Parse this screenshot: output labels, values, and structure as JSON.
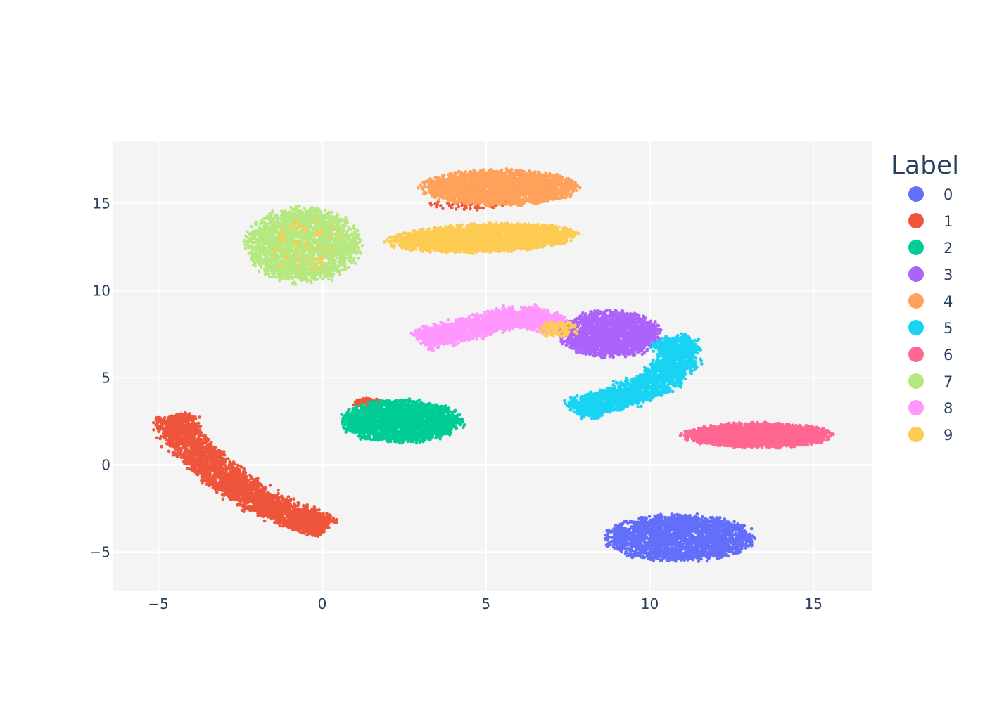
{
  "chart_data": {
    "type": "scatter",
    "xlim": [
      -6.4,
      16.8
    ],
    "ylim": [
      -7.2,
      18.6
    ],
    "x_ticks": [
      -5,
      0,
      5,
      10,
      15
    ],
    "y_ticks": [
      -5,
      0,
      5,
      10,
      15
    ],
    "x_tick_labels": [
      "−5",
      "0",
      "5",
      "10",
      "15"
    ],
    "y_tick_labels": [
      "−5",
      "0",
      "5",
      "10",
      "15"
    ],
    "grid": true,
    "plot_background": "#f4f4f4",
    "grid_color": "#ffffff",
    "legend": {
      "title": "Label",
      "placement": "right"
    },
    "series": [
      {
        "name": "0",
        "color": "#636efa",
        "clusters": [
          {
            "cx": 10.9,
            "cy": -4.2,
            "rx": 2.2,
            "ry": 1.3,
            "n": 2400
          }
        ]
      },
      {
        "name": "1",
        "color": "#ef553b",
        "clusters": [
          {
            "path": [
              [
                -4.6,
                2.8
              ],
              [
                -4.1,
                1.2
              ],
              [
                -3.0,
                -0.7
              ],
              [
                -2.0,
                -2.0
              ],
              [
                -0.8,
                -3.0
              ],
              [
                0.1,
                -3.6
              ]
            ],
            "width": 1.0,
            "n": 3200
          },
          {
            "cx": 1.4,
            "cy": 3.5,
            "rx": 0.5,
            "ry": 0.3,
            "n": 120
          },
          {
            "cx": 4.5,
            "cy": 15.0,
            "rx": 1.2,
            "ry": 0.4,
            "n": 80
          }
        ]
      },
      {
        "name": "2",
        "color": "#00cc96",
        "clusters": [
          {
            "cx": 2.4,
            "cy": 2.5,
            "rx": 1.8,
            "ry": 1.2,
            "n": 2200
          }
        ]
      },
      {
        "name": "3",
        "color": "#ab63fa",
        "clusters": [
          {
            "cx": 8.8,
            "cy": 7.5,
            "rx": 1.5,
            "ry": 1.3,
            "n": 1900
          }
        ]
      },
      {
        "name": "4",
        "color": "#ffa15a",
        "clusters": [
          {
            "cx": 5.4,
            "cy": 15.9,
            "rx": 2.3,
            "ry": 1.0,
            "n": 2500
          }
        ]
      },
      {
        "name": "5",
        "color": "#19d3f3",
        "clusters": [
          {
            "path": [
              [
                7.7,
                3.2
              ],
              [
                9.0,
                3.8
              ],
              [
                10.3,
                4.8
              ],
              [
                11.0,
                6.3
              ],
              [
                10.6,
                7.2
              ]
            ],
            "width": 1.0,
            "n": 2300
          }
        ]
      },
      {
        "name": "6",
        "color": "#ff6692",
        "clusters": [
          {
            "cx": 13.3,
            "cy": 1.7,
            "rx": 2.2,
            "ry": 0.7,
            "n": 2300
          }
        ]
      },
      {
        "name": "7",
        "color": "#b6e880",
        "clusters": [
          {
            "cx": -0.6,
            "cy": 12.6,
            "rx": 1.7,
            "ry": 2.1,
            "n": 2300
          }
        ]
      },
      {
        "name": "8",
        "color": "#ff97ff",
        "clusters": [
          {
            "path": [
              [
                3.0,
                7.2
              ],
              [
                4.5,
                7.8
              ],
              [
                6.0,
                8.6
              ],
              [
                7.2,
                8.0
              ]
            ],
            "width": 0.9,
            "n": 2100
          }
        ]
      },
      {
        "name": "9",
        "color": "#fecb52",
        "clusters": [
          {
            "cx": 4.9,
            "cy": 13.0,
            "rx": 2.8,
            "ry": 0.8,
            "rot": 0.07,
            "n": 2600
          },
          {
            "cx": 7.2,
            "cy": 7.8,
            "rx": 0.6,
            "ry": 0.5,
            "n": 120
          },
          {
            "cx": -0.6,
            "cy": 12.6,
            "rx": 1.2,
            "ry": 1.5,
            "n": 60
          }
        ]
      }
    ]
  }
}
